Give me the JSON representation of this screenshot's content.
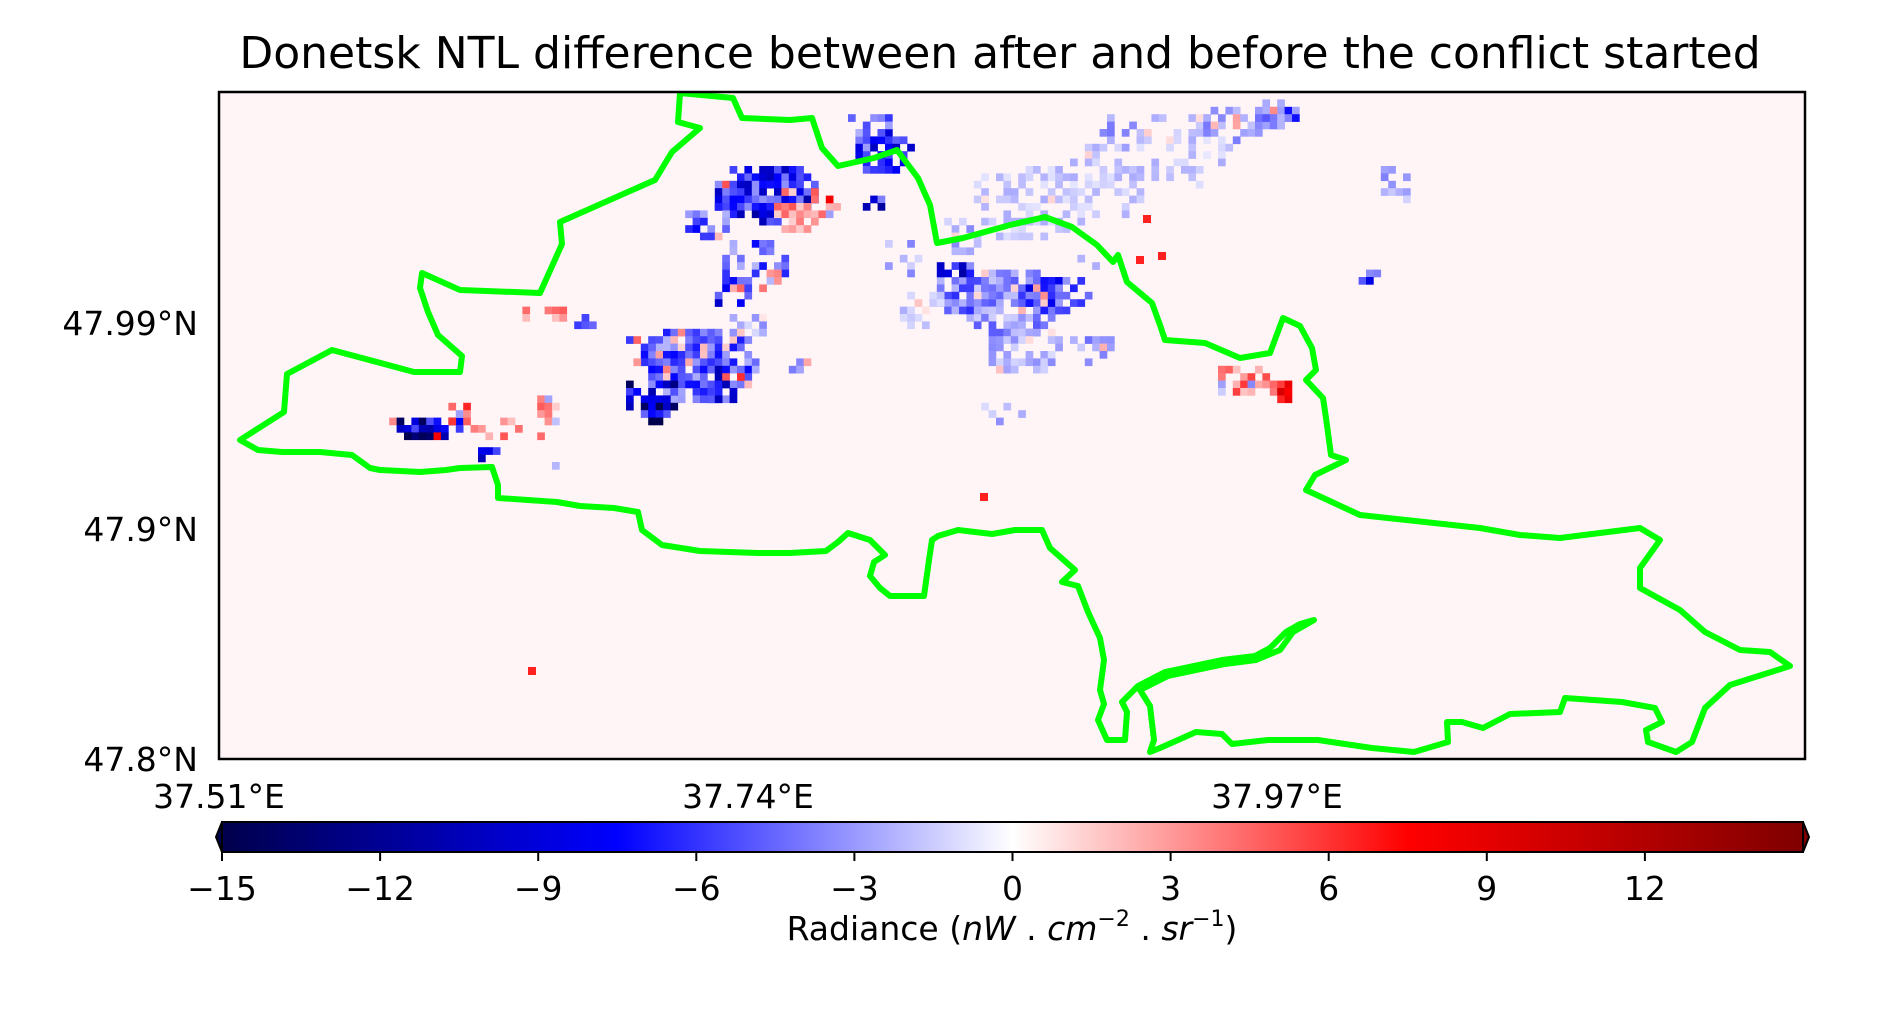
{
  "title": "Donetsk NTL difference between after and before the conflict started",
  "map": {
    "lat_ticks": [
      "47.99°N",
      "47.9°N",
      "47.8°N"
    ],
    "lon_ticks": [
      "37.51°E",
      "37.74°E",
      "37.97°E"
    ],
    "boundary_color": "#00ff00",
    "background_color": "#fff5f7"
  },
  "colorbar": {
    "cmap": "seismic",
    "min": -15,
    "max": 15,
    "extend": "both",
    "ticks": [
      "−15",
      "−12",
      "−9",
      "−6",
      "−3",
      "0",
      "3",
      "6",
      "9",
      "12"
    ],
    "label_prefix": "Radiance (",
    "label_nw": "nW",
    "label_sep1": " . ",
    "label_cm": "cm",
    "label_cm_exp": "−2",
    "label_sep2": " . ",
    "label_sr": "sr",
    "label_sr_exp": "−1",
    "label_suffix": ")"
  }
}
